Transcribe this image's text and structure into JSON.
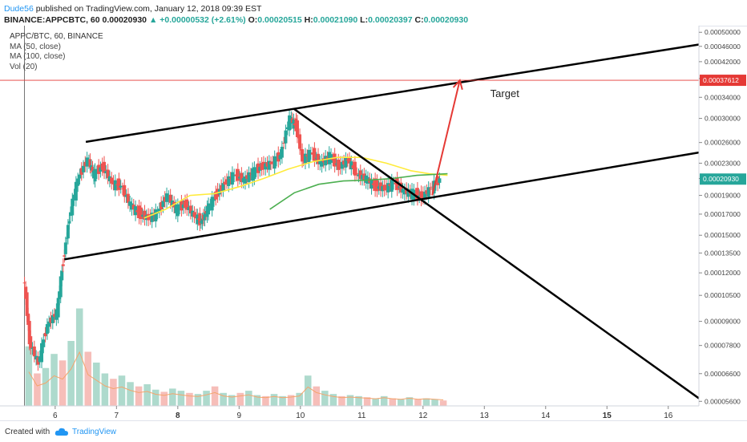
{
  "header": {
    "author": "Dude56",
    "published": " published on TradingView.com, January 12, 2018 09:39 EST",
    "symbol_line": "BINANCE:APPCBTC, 60",
    "open_price": "0.00020930",
    "change": "▲ +0.00000532 (+2.61%)",
    "o_label": "O:",
    "o_value": "0.00020515",
    "h_label": "H:",
    "h_value": "0.00021090",
    "l_label": "L:",
    "l_value": "0.00020397",
    "c_label": "C:",
    "c_value": "0.00020930"
  },
  "legend": {
    "symbol": "APPC/BTC, 60, BINANCE",
    "ma50": "MA (50, close)",
    "ma100": "MA (100, close)",
    "vol": "Vol (20)"
  },
  "footer": {
    "created_with": "Created with",
    "brand": "TradingView"
  },
  "colors": {
    "up": "#26a69a",
    "down": "#ef5350",
    "ma50": "#ffeb3b",
    "ma100": "#4caf50",
    "target": "#e53935",
    "trend": "#000000"
  },
  "chart_data": {
    "type": "candlestick",
    "x_ticks": [
      "6",
      "7",
      "8",
      "9",
      "10",
      "11",
      "12",
      "13",
      "14",
      "15",
      "16"
    ],
    "x_tick_positions": [
      6,
      7,
      8,
      9,
      10,
      11,
      12,
      13,
      14,
      15,
      16
    ],
    "x_range": [
      5.1,
      16.5
    ],
    "bold_ticks": [
      "8",
      "15"
    ],
    "y_ticks": [
      "0.00050000",
      "0.00046000",
      "0.00042000",
      "0.00038000",
      "0.00034000",
      "0.00030000",
      "0.00026000",
      "0.00023000",
      "0.00021000",
      "0.00019000",
      "0.00017000",
      "0.00015000",
      "0.00013500",
      "0.00012000",
      "0.00010500",
      "0.00009000",
      "0.00007800",
      "0.00006600",
      "0.00005600"
    ],
    "y_scale": "log",
    "y_range": [
      5.45e-05,
      0.00052
    ],
    "current_price_label": "0.00020930",
    "target_label": "0.00037612",
    "target_price": 0.00037612,
    "annotation": "Target",
    "price_path": [
      [
        5.5,
        0.000118
      ],
      [
        5.6,
        8e-05
      ],
      [
        5.75,
        7e-05
      ],
      [
        5.9,
        8.8e-05
      ],
      [
        6.05,
        9.5e-05
      ],
      [
        6.15,
        0.000128
      ],
      [
        6.25,
        0.000165
      ],
      [
        6.4,
        0.00021
      ],
      [
        6.55,
        0.000235
      ],
      [
        6.65,
        0.000215
      ],
      [
        6.8,
        0.000225
      ],
      [
        6.95,
        0.000205
      ],
      [
        7.1,
        0.0002
      ],
      [
        7.25,
        0.00018
      ],
      [
        7.4,
        0.00017
      ],
      [
        7.55,
        0.000166
      ],
      [
        7.7,
        0.000172
      ],
      [
        7.85,
        0.00019
      ],
      [
        8.0,
        0.000175
      ],
      [
        8.15,
        0.00018
      ],
      [
        8.3,
        0.000168
      ],
      [
        8.4,
        0.000162
      ],
      [
        8.5,
        0.000175
      ],
      [
        8.65,
        0.00019
      ],
      [
        8.8,
        0.000205
      ],
      [
        8.95,
        0.000215
      ],
      [
        9.1,
        0.000208
      ],
      [
        9.25,
        0.000218
      ],
      [
        9.4,
        0.000225
      ],
      [
        9.55,
        0.00023
      ],
      [
        9.7,
        0.00024
      ],
      [
        9.85,
        0.0003
      ],
      [
        9.95,
        0.000285
      ],
      [
        10.05,
        0.000235
      ],
      [
        10.2,
        0.000245
      ],
      [
        10.35,
        0.00023
      ],
      [
        10.5,
        0.00024
      ],
      [
        10.65,
        0.000225
      ],
      [
        10.8,
        0.000235
      ],
      [
        10.95,
        0.000215
      ],
      [
        11.1,
        0.00021
      ],
      [
        11.25,
        0.0002
      ],
      [
        11.4,
        0.000198
      ],
      [
        11.55,
        0.000205
      ],
      [
        11.7,
        0.000195
      ],
      [
        11.85,
        0.000193
      ],
      [
        12.0,
        0.000188
      ],
      [
        12.15,
        0.000198
      ],
      [
        12.3,
        0.000209
      ]
    ],
    "ma50_path": [
      [
        7.45,
        0.000166
      ],
      [
        7.8,
        0.000175
      ],
      [
        8.2,
        0.00019
      ],
      [
        8.6,
        0.000192
      ],
      [
        9.0,
        0.0002
      ],
      [
        9.4,
        0.00021
      ],
      [
        9.8,
        0.000222
      ],
      [
        10.2,
        0.000232
      ],
      [
        10.6,
        0.000238
      ],
      [
        11.0,
        0.000238
      ],
      [
        11.4,
        0.00023
      ],
      [
        11.8,
        0.00022
      ],
      [
        12.1,
        0.000216
      ],
      [
        12.4,
        0.000214
      ]
    ],
    "ma100_path": [
      [
        9.5,
        0.000175
      ],
      [
        9.9,
        0.000193
      ],
      [
        10.3,
        0.000203
      ],
      [
        10.7,
        0.000207
      ],
      [
        11.1,
        0.000208
      ],
      [
        11.5,
        0.00021
      ],
      [
        11.9,
        0.000214
      ],
      [
        12.4,
        0.000216
      ]
    ],
    "trend_lines": [
      {
        "from": [
          6.5,
          0.000261
        ],
        "to": [
          16.5,
          0.000465
        ]
      },
      {
        "from": [
          6.15,
          0.00013
        ],
        "to": [
          16.5,
          0.000245
        ]
      },
      {
        "from": [
          9.9,
          0.000317
        ],
        "to": [
          16.5,
          5.7e-05
        ]
      }
    ],
    "target_arrow": {
      "from": [
        12.15,
        0.00019
      ],
      "to": [
        12.6,
        0.000376
      ]
    },
    "volume_levels": [
      0.55,
      0.3,
      0.35,
      0.48,
      0.42,
      0.6,
      0.9,
      0.5,
      0.4,
      0.3,
      0.25,
      0.28,
      0.22,
      0.18,
      0.2,
      0.15,
      0.13,
      0.16,
      0.14,
      0.12,
      0.11,
      0.14,
      0.18,
      0.12,
      0.1,
      0.12,
      0.14,
      0.1,
      0.09,
      0.11,
      0.09,
      0.1,
      0.12,
      0.28,
      0.18,
      0.14,
      0.11,
      0.09,
      0.1,
      0.09,
      0.08,
      0.07,
      0.09,
      0.07,
      0.06,
      0.08,
      0.06,
      0.07,
      0.06,
      0.05
    ]
  }
}
